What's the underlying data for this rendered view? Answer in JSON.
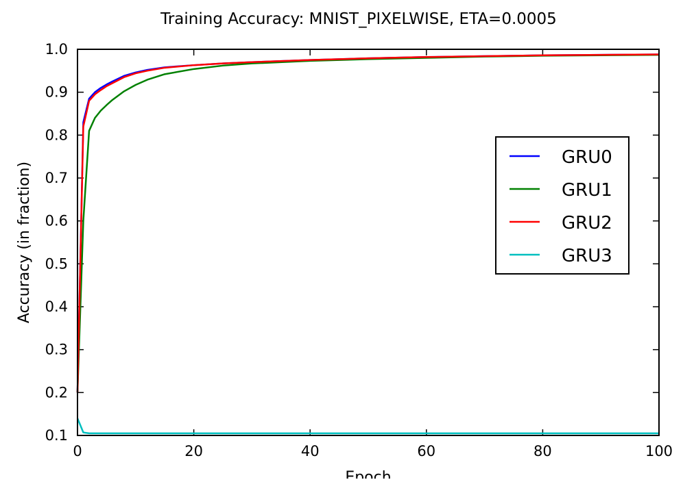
{
  "chart_data": {
    "type": "line",
    "title": "Training Accuracy: MNIST_PIXELWISE, ETA=0.0005",
    "xlabel": "Epoch",
    "ylabel": "Accuracy (in fraction)",
    "xlim": [
      0,
      100
    ],
    "ylim": [
      0.1,
      1.0
    ],
    "xticks": [
      "0",
      "20",
      "40",
      "60",
      "80",
      "100"
    ],
    "yticks": [
      "0.1",
      "0.2",
      "0.3",
      "0.4",
      "0.5",
      "0.6",
      "0.7",
      "0.8",
      "0.9",
      "1.0"
    ],
    "grid": false,
    "legend_position": "center-right",
    "x": [
      0,
      1,
      2,
      3,
      4,
      5,
      6,
      8,
      10,
      12,
      15,
      20,
      25,
      30,
      40,
      50,
      60,
      70,
      80,
      90,
      100
    ],
    "series": [
      {
        "name": "GRU0",
        "color": "#0000ff",
        "values": [
          0.2,
          0.83,
          0.885,
          0.9,
          0.91,
          0.918,
          0.925,
          0.938,
          0.946,
          0.952,
          0.958,
          0.963,
          0.967,
          0.97,
          0.975,
          0.979,
          0.982,
          0.984,
          0.986,
          0.987,
          0.988
        ]
      },
      {
        "name": "GRU1",
        "color": "#008000",
        "values": [
          0.2,
          0.6,
          0.81,
          0.84,
          0.857,
          0.87,
          0.882,
          0.902,
          0.917,
          0.929,
          0.942,
          0.954,
          0.962,
          0.967,
          0.973,
          0.977,
          0.98,
          0.983,
          0.985,
          0.986,
          0.987
        ]
      },
      {
        "name": "GRU2",
        "color": "#ff0000",
        "values": [
          0.2,
          0.82,
          0.88,
          0.895,
          0.905,
          0.914,
          0.921,
          0.935,
          0.944,
          0.95,
          0.957,
          0.963,
          0.967,
          0.97,
          0.975,
          0.979,
          0.982,
          0.984,
          0.986,
          0.987,
          0.988
        ]
      },
      {
        "name": "GRU3",
        "color": "#00bfbf",
        "values": [
          0.14,
          0.107,
          0.105,
          0.105,
          0.105,
          0.105,
          0.105,
          0.105,
          0.105,
          0.105,
          0.105,
          0.105,
          0.105,
          0.105,
          0.105,
          0.105,
          0.105,
          0.105,
          0.105,
          0.105,
          0.105
        ]
      }
    ]
  }
}
